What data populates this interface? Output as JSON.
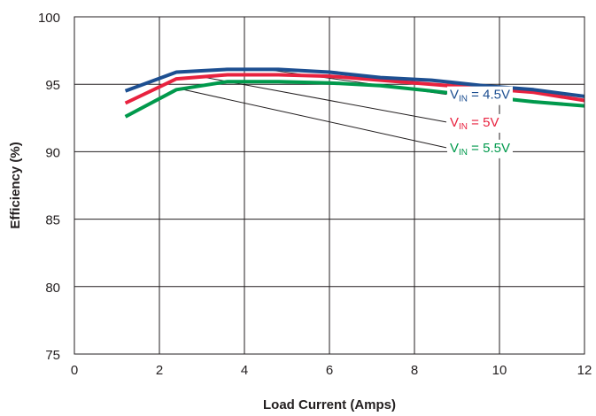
{
  "chart_data": {
    "type": "line",
    "xlabel": "Load Current (Amps)",
    "ylabel": "Efficiency (%)",
    "xlim": [
      0,
      12
    ],
    "ylim": [
      75,
      100
    ],
    "xticks": [
      0,
      2,
      4,
      6,
      8,
      10,
      12
    ],
    "yticks": [
      75,
      80,
      85,
      90,
      95,
      100
    ],
    "grid": true,
    "series": [
      {
        "name": "VIN = 4.5V",
        "label_main": "V",
        "label_sub": "IN",
        "label_rest": " = 4.5V",
        "color": "#1d4f91",
        "x": [
          1.2,
          2.4,
          3.6,
          4.8,
          6.0,
          7.2,
          8.4,
          9.6,
          10.8,
          12.0
        ],
        "y": [
          94.5,
          95.9,
          96.1,
          96.1,
          95.9,
          95.5,
          95.3,
          94.9,
          94.6,
          94.1
        ]
      },
      {
        "name": "VIN = 5V",
        "label_main": "V",
        "label_sub": "IN",
        "label_rest": " = 5V",
        "color": "#e8223f",
        "x": [
          1.2,
          2.4,
          3.6,
          4.8,
          6.0,
          7.2,
          8.4,
          9.6,
          10.8,
          12.0
        ],
        "y": [
          93.6,
          95.4,
          95.7,
          95.7,
          95.6,
          95.3,
          95.0,
          94.7,
          94.4,
          93.8
        ]
      },
      {
        "name": "VIN = 5.5V",
        "label_main": "V",
        "label_sub": "IN",
        "label_rest": " = 5.5V",
        "color": "#00994c",
        "x": [
          1.2,
          2.4,
          3.6,
          4.8,
          6.0,
          7.2,
          8.4,
          9.6,
          10.8,
          12.0
        ],
        "y": [
          92.6,
          94.6,
          95.2,
          95.2,
          95.1,
          94.9,
          94.5,
          94.1,
          93.7,
          93.4
        ]
      }
    ]
  }
}
